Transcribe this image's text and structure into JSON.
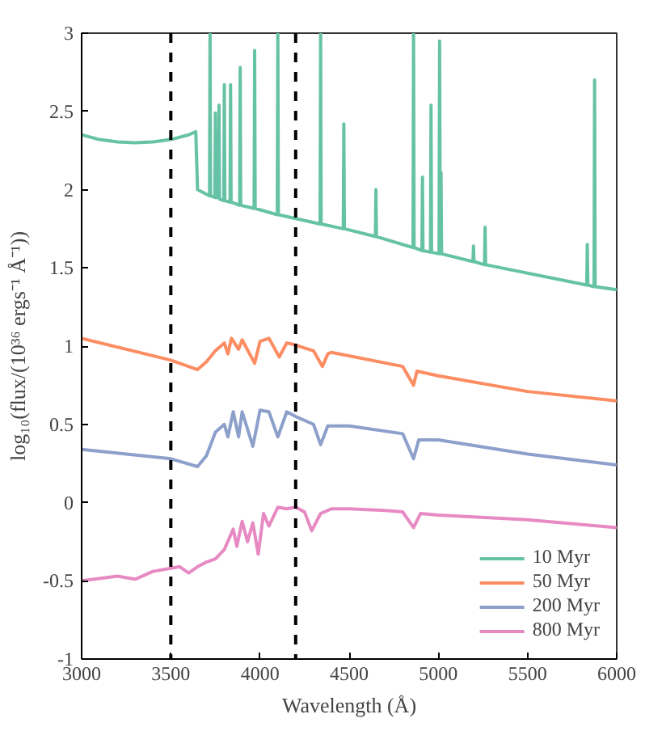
{
  "chart_data": {
    "type": "line",
    "xlabel": "Wavelength (Å)",
    "ylabel": "log₁₀(flux/(10³⁶ ergs⁻¹ Å⁻¹))",
    "xlim": [
      3000,
      6000
    ],
    "ylim": [
      -1,
      3
    ],
    "xticks": [
      3000,
      3500,
      4000,
      4500,
      5000,
      5500,
      6000
    ],
    "yticks": [
      -1,
      -0.5,
      0,
      0.5,
      1,
      1.5,
      2,
      2.5,
      3
    ],
    "grid": false,
    "legend": "bottom right",
    "line_style": "solid",
    "marker": "none",
    "ref_lines": [
      {
        "axis": "x",
        "value": 3500,
        "color": "#000000",
        "line_style": "dashed"
      },
      {
        "axis": "x",
        "value": 4200,
        "color": "#000000",
        "line_style": "dashed"
      }
    ],
    "series": [
      {
        "name": "10 Myr",
        "color": "#66c2a5",
        "x": [
          3000,
          3100,
          3200,
          3300,
          3400,
          3500,
          3600,
          3640,
          3650,
          3700,
          3717,
          3720,
          3723,
          3747,
          3750,
          3753,
          3767,
          3770,
          3773,
          3797,
          3800,
          3803,
          3832,
          3835,
          3838,
          3886,
          3889,
          3892,
          3967,
          3970,
          3973,
          4097,
          4100,
          4103,
          4337,
          4340,
          4343,
          4467,
          4470,
          4473,
          4647,
          4650,
          4653,
          4858,
          4861,
          4864,
          4908,
          4911,
          4914,
          4956,
          4959,
          4962,
          5004,
          5007,
          5011,
          5015,
          5018,
          5194,
          5197,
          5200,
          5259,
          5262,
          5265,
          5832,
          5835,
          5838,
          5873,
          5876,
          5879,
          6000
        ],
        "values": [
          2.35,
          2.32,
          2.305,
          2.3,
          2.305,
          2.32,
          2.35,
          2.37,
          2.0,
          1.97,
          1.96,
          3.0,
          1.96,
          1.95,
          2.49,
          1.95,
          1.95,
          2.54,
          1.94,
          1.93,
          2.67,
          1.93,
          1.92,
          2.67,
          1.92,
          1.9,
          2.78,
          1.9,
          1.88,
          2.89,
          1.88,
          1.84,
          3.0,
          1.84,
          1.78,
          3.0,
          1.78,
          1.75,
          2.42,
          1.75,
          1.7,
          2.0,
          1.7,
          1.63,
          3.0,
          1.63,
          1.61,
          2.08,
          1.61,
          1.6,
          2.54,
          1.6,
          1.59,
          2.95,
          1.59,
          2.11,
          1.59,
          1.54,
          1.64,
          1.54,
          1.52,
          1.76,
          1.52,
          1.39,
          1.65,
          1.39,
          1.38,
          2.7,
          1.38,
          1.36
        ]
      },
      {
        "name": "50 Myr",
        "color": "#fc8d62",
        "x": [
          3000,
          3500,
          3650,
          3700,
          3750,
          3800,
          3820,
          3840,
          3880,
          3900,
          3970,
          4000,
          4050,
          4108,
          4150,
          4190,
          4300,
          4350,
          4380,
          4400,
          4800,
          4861,
          4880,
          5000,
          5500,
          6000
        ],
        "values": [
          1.05,
          0.91,
          0.85,
          0.9,
          0.97,
          1.02,
          0.95,
          1.05,
          0.98,
          1.04,
          0.89,
          1.03,
          1.05,
          0.93,
          1.02,
          1.01,
          0.97,
          0.87,
          0.95,
          0.96,
          0.87,
          0.75,
          0.84,
          0.81,
          0.71,
          0.65
        ]
      },
      {
        "name": "200 Myr",
        "color": "#8da0cb",
        "x": [
          3000,
          3500,
          3650,
          3700,
          3750,
          3800,
          3820,
          3850,
          3880,
          3900,
          3960,
          4000,
          4050,
          4100,
          4150,
          4200,
          4300,
          4340,
          4380,
          4500,
          4800,
          4861,
          4890,
          5000,
          5500,
          6000
        ],
        "values": [
          0.34,
          0.28,
          0.23,
          0.3,
          0.45,
          0.5,
          0.42,
          0.58,
          0.42,
          0.58,
          0.36,
          0.59,
          0.58,
          0.42,
          0.58,
          0.55,
          0.5,
          0.37,
          0.49,
          0.49,
          0.44,
          0.28,
          0.4,
          0.4,
          0.31,
          0.24
        ]
      },
      {
        "name": "800 Myr",
        "color": "#e78ac3",
        "x": [
          3000,
          3200,
          3300,
          3400,
          3500,
          3550,
          3600,
          3650,
          3700,
          3750,
          3800,
          3850,
          3870,
          3900,
          3930,
          3960,
          3990,
          4020,
          4050,
          4100,
          4150,
          4200,
          4250,
          4290,
          4340,
          4400,
          4500,
          4700,
          4800,
          4861,
          4900,
          5000,
          5500,
          6000
        ],
        "values": [
          -0.5,
          -0.47,
          -0.49,
          -0.44,
          -0.42,
          -0.41,
          -0.45,
          -0.41,
          -0.38,
          -0.36,
          -0.3,
          -0.17,
          -0.28,
          -0.12,
          -0.25,
          -0.13,
          -0.33,
          -0.07,
          -0.15,
          -0.03,
          -0.04,
          -0.03,
          -0.06,
          -0.18,
          -0.07,
          -0.04,
          -0.04,
          -0.05,
          -0.06,
          -0.16,
          -0.07,
          -0.08,
          -0.11,
          -0.16
        ]
      }
    ]
  }
}
